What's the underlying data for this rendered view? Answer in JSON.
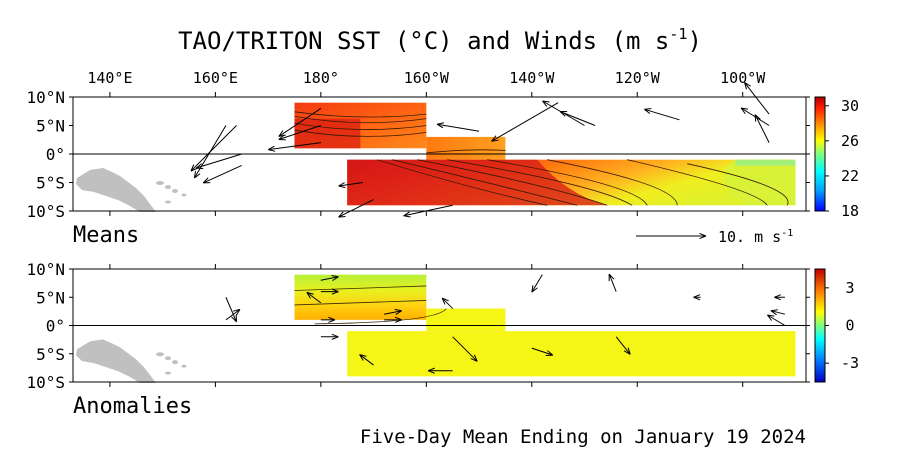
{
  "title": {
    "main": "TAO/TRITON SST (°C) and Winds (m s",
    "sup": "-1",
    "close": ")"
  },
  "footer": "Five-Day Mean Ending on January 19 2024",
  "lon_ticks": [
    {
      "lon": 140,
      "label": "140°E"
    },
    {
      "lon": 160,
      "label": "160°E"
    },
    {
      "lon": 180,
      "label": "180°"
    },
    {
      "lon": 200,
      "label": "160°W"
    },
    {
      "lon": 220,
      "label": "140°W"
    },
    {
      "lon": 240,
      "label": "120°W"
    },
    {
      "lon": 260,
      "label": "100°W"
    }
  ],
  "lat_ticks": [
    {
      "lat": 10,
      "label": "10°N"
    },
    {
      "lat": 5,
      "label": "5°N"
    },
    {
      "lat": 0,
      "label": "0°"
    },
    {
      "lat": -5,
      "label": "5°S"
    },
    {
      "lat": -10,
      "label": "10°S"
    }
  ],
  "land_color": "#c0c0c0",
  "chart_data": [
    {
      "type": "heatmap",
      "panel": "Means",
      "xlim": [
        133,
        272
      ],
      "ylim": [
        -10,
        10
      ],
      "colorbar": {
        "min": 18,
        "max": 31,
        "ticks": [
          30,
          26,
          22,
          18
        ]
      },
      "wind_scale": {
        "value": 10,
        "label": "10.",
        "unit": "m s",
        "unit_sup": "-1"
      },
      "sst_blocks": [
        {
          "lon": [
            175,
            200
          ],
          "lat": [
            1,
            9
          ]
        },
        {
          "lon": [
            200,
            215
          ],
          "lat": [
            -1,
            3
          ]
        },
        {
          "lon": [
            185,
            270
          ],
          "lat": [
            -9,
            -1
          ]
        }
      ],
      "winds": [
        {
          "lon": 162,
          "lat": 5,
          "u": -4.5,
          "v": -7.5
        },
        {
          "lon": 164,
          "lat": 5,
          "u": -6.5,
          "v": -6.5
        },
        {
          "lon": 165,
          "lat": 0,
          "u": -6.5,
          "v": -2
        },
        {
          "lon": 165,
          "lat": -2,
          "u": -5.5,
          "v": -2.5
        },
        {
          "lon": 180,
          "lat": 8,
          "u": -6,
          "v": -4
        },
        {
          "lon": 180,
          "lat": 5,
          "u": -6,
          "v": -2
        },
        {
          "lon": 180,
          "lat": 2,
          "u": -7.5,
          "v": -1
        },
        {
          "lon": 188,
          "lat": -5,
          "u": -3.5,
          "v": -0.5
        },
        {
          "lon": 190,
          "lat": -8,
          "u": -5,
          "v": -2.5
        },
        {
          "lon": 205,
          "lat": -9,
          "u": -7,
          "v": -1.5
        },
        {
          "lon": 210,
          "lat": 4,
          "u": -6,
          "v": 1
        },
        {
          "lon": 225,
          "lat": 9,
          "u": -9.5,
          "v": -5.5
        },
        {
          "lon": 230,
          "lat": 5,
          "u": -6,
          "v": 3.5
        },
        {
          "lon": 232,
          "lat": 5,
          "u": -5,
          "v": 2
        },
        {
          "lon": 248,
          "lat": 6,
          "u": -5,
          "v": 1.5
        },
        {
          "lon": 265,
          "lat": 7,
          "u": -3.5,
          "v": 4.5
        },
        {
          "lon": 265,
          "lat": 5,
          "u": -4,
          "v": 2.5
        },
        {
          "lon": 265,
          "lat": 2,
          "u": -2,
          "v": 4
        }
      ]
    },
    {
      "type": "heatmap",
      "panel": "Anomalies",
      "xlim": [
        133,
        272
      ],
      "ylim": [
        -10,
        10
      ],
      "colorbar": {
        "min": -4.5,
        "max": 4.5,
        "ticks": [
          3,
          0,
          -3
        ]
      },
      "sst_blocks": [
        {
          "lon": [
            175,
            200
          ],
          "lat": [
            1,
            9
          ]
        },
        {
          "lon": [
            200,
            215
          ],
          "lat": [
            -1,
            3
          ]
        },
        {
          "lon": [
            185,
            270
          ],
          "lat": [
            -9,
            -1
          ]
        }
      ],
      "winds": [
        {
          "lon": 162,
          "lat": 5,
          "u": 1.5,
          "v": -3.5
        },
        {
          "lon": 162,
          "lat": 1,
          "u": 2,
          "v": 1.5
        },
        {
          "lon": 180,
          "lat": 8,
          "u": 2.5,
          "v": 0.5
        },
        {
          "lon": 180,
          "lat": 6,
          "u": 2.5,
          "v": 0
        },
        {
          "lon": 180,
          "lat": 4,
          "u": -2,
          "v": 1.5
        },
        {
          "lon": 180,
          "lat": 1,
          "u": 2,
          "v": 0
        },
        {
          "lon": 180,
          "lat": -2,
          "u": 2.5,
          "v": 0
        },
        {
          "lon": 192,
          "lat": 2,
          "u": 2.5,
          "v": 0.5
        },
        {
          "lon": 192,
          "lat": 1,
          "u": 2.5,
          "v": 0
        },
        {
          "lon": 190,
          "lat": -7,
          "u": -2,
          "v": 1.5
        },
        {
          "lon": 205,
          "lat": 3,
          "u": -1.5,
          "v": 1.5
        },
        {
          "lon": 205,
          "lat": -2,
          "u": 3.5,
          "v": -3.5
        },
        {
          "lon": 205,
          "lat": -8,
          "u": -3.5,
          "v": 0
        },
        {
          "lon": 222,
          "lat": 9,
          "u": -1.5,
          "v": -2.5
        },
        {
          "lon": 220,
          "lat": -4,
          "u": 3,
          "v": -1
        },
        {
          "lon": 236,
          "lat": -2,
          "u": 2,
          "v": -2.5
        },
        {
          "lon": 236,
          "lat": 6,
          "u": -1,
          "v": 2.5
        },
        {
          "lon": 252,
          "lat": 5,
          "u": -1,
          "v": 0
        },
        {
          "lon": 268,
          "lat": 5,
          "u": -1.5,
          "v": 0
        },
        {
          "lon": 268,
          "lat": 2,
          "u": -2,
          "v": 0.5
        },
        {
          "lon": 268,
          "lat": 0,
          "u": -2.5,
          "v": 1.5
        }
      ]
    }
  ]
}
